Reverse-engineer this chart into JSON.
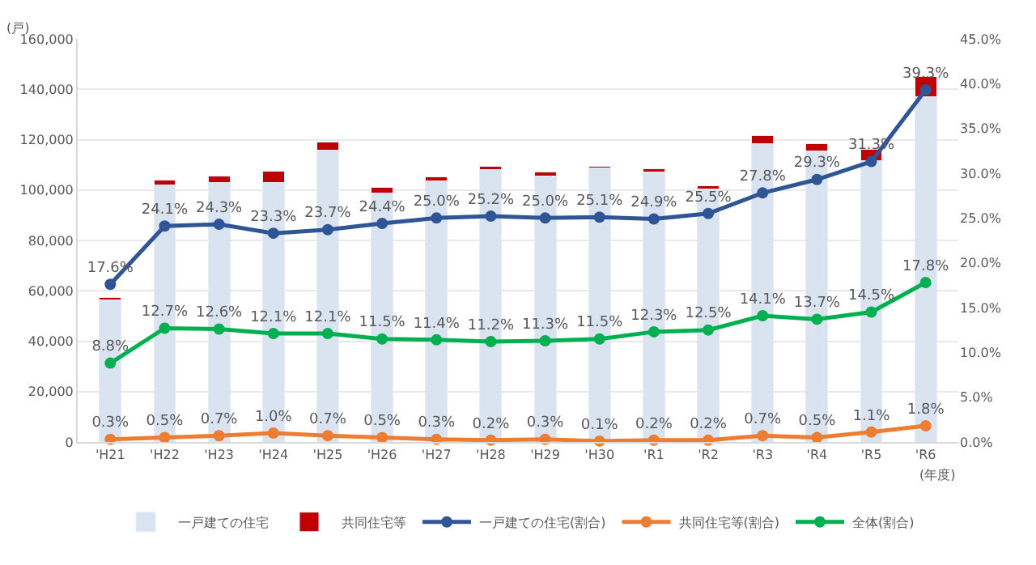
{
  "chart_data": {
    "type": "bar",
    "stacked": true,
    "categories": [
      "'H21",
      "'H22",
      "'H23",
      "'H24",
      "'H25",
      "'H26",
      "'H27",
      "'H28",
      "'H29",
      "'H30",
      "'R1",
      "'R2",
      "'R3",
      "'R4",
      "'R5",
      "'R6"
    ],
    "series": [
      {
        "name": "一戸建ての住宅",
        "color": "#dae3f0",
        "values": [
          56500,
          102000,
          102900,
          102900,
          115800,
          98800,
          103700,
          108200,
          105400,
          108700,
          107200,
          100500,
          118500,
          115500,
          111500,
          137000
        ]
      },
      {
        "name": "共同住宅等",
        "color": "#c00000",
        "values": [
          800,
          1900,
          2800,
          4700,
          3200,
          2200,
          1400,
          1300,
          1800,
          800,
          1300,
          1100,
          3100,
          2800,
          4700,
          8000
        ]
      },
      {
        "name": "一戸建ての住宅(割合)",
        "type": "line",
        "axis": "y2",
        "color": "#2f5597",
        "values": [
          17.6,
          24.1,
          24.3,
          23.3,
          23.7,
          24.4,
          25.0,
          25.2,
          25.0,
          25.1,
          24.9,
          25.5,
          27.8,
          29.3,
          31.3,
          39.3
        ],
        "value_labels": [
          "17.6%",
          "24.1%",
          "24.3%",
          "23.3%",
          "23.7%",
          "24.4%",
          "25.0%",
          "25.2%",
          "25.0%",
          "25.1%",
          "24.9%",
          "25.5%",
          "27.8%",
          "29.3%",
          "31.3%",
          "39.3%"
        ]
      },
      {
        "name": "共同住宅等(割合)",
        "type": "line",
        "axis": "y2",
        "color": "#ed7d31",
        "values": [
          0.3,
          0.5,
          0.7,
          1.0,
          0.7,
          0.5,
          0.3,
          0.2,
          0.3,
          0.1,
          0.2,
          0.2,
          0.7,
          0.5,
          1.1,
          1.8
        ],
        "value_labels": [
          "0.3%",
          "0.5%",
          "0.7%",
          "1.0%",
          "0.7%",
          "0.5%",
          "0.3%",
          "0.2%",
          "0.3%",
          "0.1%",
          "0.2%",
          "0.2%",
          "0.7%",
          "0.5%",
          "1.1%",
          "1.8%"
        ]
      },
      {
        "name": "全体(割合)",
        "type": "line",
        "axis": "y2",
        "color": "#00b050",
        "values": [
          8.8,
          12.7,
          12.6,
          12.1,
          12.1,
          11.5,
          11.4,
          11.2,
          11.3,
          11.5,
          12.3,
          12.5,
          14.1,
          13.7,
          14.5,
          17.8
        ],
        "value_labels": [
          "8.8%",
          "12.7%",
          "12.6%",
          "12.1%",
          "12.1%",
          "11.5%",
          "11.4%",
          "11.2%",
          "11.3%",
          "11.5%",
          "12.3%",
          "12.5%",
          "14.1%",
          "13.7%",
          "14.5%",
          "17.8%"
        ]
      }
    ],
    "ylim": [
      0,
      160000
    ],
    "yticks": [
      0,
      {
        "value": 20000,
        "label": "20,000"
      },
      {
        "value": 40000,
        "label": "40,000"
      },
      {
        "value": 60000,
        "label": "60,000"
      },
      {
        "value": 80000,
        "label": "80,000"
      },
      {
        "value": 100000,
        "label": "100,000"
      },
      {
        "value": 120000,
        "label": "120,000"
      },
      {
        "value": 140000,
        "label": "140,000"
      },
      {
        "value": 160000,
        "label": "160,000"
      }
    ],
    "y2lim": [
      0,
      45
    ],
    "y2ticks": [
      {
        "value": 0,
        "label": "0.0%"
      },
      {
        "value": 5,
        "label": "5.0%"
      },
      {
        "value": 10,
        "label": "10.0%"
      },
      {
        "value": 15,
        "label": "15.0%"
      },
      {
        "value": 20,
        "label": "20.0%"
      },
      {
        "value": 25,
        "label": "25.0%"
      },
      {
        "value": 30,
        "label": "30.0%"
      },
      {
        "value": 35,
        "label": "35.0%"
      },
      {
        "value": 40,
        "label": "40.0%"
      },
      {
        "value": 45,
        "label": "45.0%"
      }
    ],
    "grid": "y",
    "legend": "bottom",
    "marker": "circle",
    "annotations": [
      "(戸)",
      "(年度)"
    ]
  }
}
